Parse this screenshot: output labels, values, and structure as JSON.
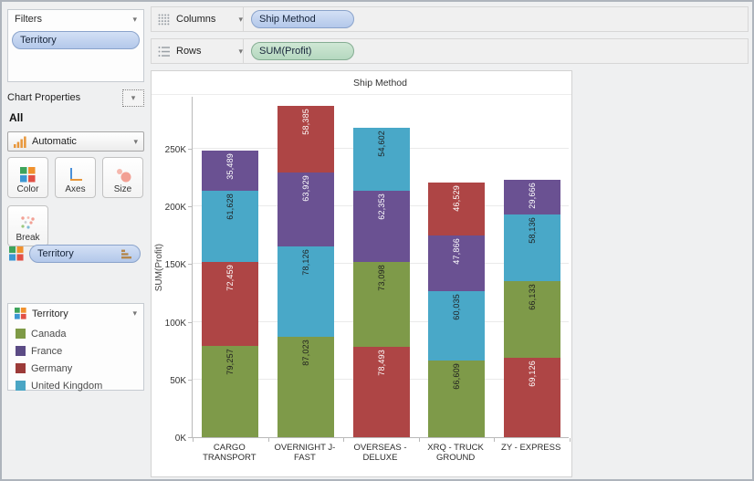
{
  "icons": {
    "chevron_down": "▾",
    "select_chevron": "▾"
  },
  "sidebar": {
    "filters": {
      "title": "Filters",
      "pill": "Territory"
    },
    "chart_properties": {
      "title": "Chart Properties",
      "scope": "All",
      "mark_type": "Automatic",
      "buttons": {
        "color": "Color",
        "axes": "Axes",
        "size": "Size",
        "break": "Break"
      },
      "encoding_pill": "Territory"
    },
    "legend": {
      "title": "Territory",
      "items": [
        {
          "label": "Canada",
          "color": "#7E9A46"
        },
        {
          "label": "France",
          "color": "#5B4B85"
        },
        {
          "label": "Germany",
          "color": "#9C3B39"
        },
        {
          "label": "United Kingdom",
          "color": "#4BA6C5"
        }
      ]
    }
  },
  "shelves": {
    "columns": {
      "label": "Columns",
      "pill": "Ship Method"
    },
    "rows": {
      "label": "Rows",
      "pill": "SUM(Profit)"
    }
  },
  "chart_data": {
    "type": "bar",
    "stacked": true,
    "title": "Ship Method",
    "ylabel": "SUM(Profit)",
    "yticks": [
      {
        "v": 0,
        "label": "0K"
      },
      {
        "v": 50000,
        "label": "50K"
      },
      {
        "v": 100000,
        "label": "100K"
      },
      {
        "v": 150000,
        "label": "150K"
      },
      {
        "v": 200000,
        "label": "200K"
      },
      {
        "v": 250000,
        "label": "250K"
      }
    ],
    "ylim": [
      0,
      295000
    ],
    "grid": true,
    "categories": [
      "CARGO TRANSPORT",
      "OVERNIGHT J-FAST",
      "OVERSEAS - DELUXE",
      "XRQ - TRUCK GROUND",
      "ZY - EXPRESS"
    ],
    "tick_lines": [
      [
        "CARGO",
        "TRANSPORT"
      ],
      [
        "OVERNIGHT J-",
        "FAST"
      ],
      [
        "OVERSEAS -",
        "DELUXE"
      ],
      [
        "XRQ - TRUCK",
        "GROUND"
      ],
      [
        "ZY - EXPRESS"
      ]
    ],
    "series_colors": {
      "Canada": "#7E9A49",
      "France": "#6A5192",
      "Germany": "#AE4545",
      "United Kingdom": "#49A8C8"
    },
    "label_text_colors": {
      "Canada": "#1f1f1f",
      "United Kingdom": "#1f1f1f",
      "France": "#ffffff",
      "Germany": "#ffffff"
    },
    "stacks": [
      {
        "category": "CARGO TRANSPORT",
        "segments": [
          {
            "name": "Canada",
            "value": 79257,
            "label": "79,257"
          },
          {
            "name": "Germany",
            "value": 72459,
            "label": "72,459"
          },
          {
            "name": "United Kingdom",
            "value": 61628,
            "label": "61,628"
          },
          {
            "name": "France",
            "value": 35489,
            "label": "35,489"
          }
        ]
      },
      {
        "category": "OVERNIGHT J-FAST",
        "segments": [
          {
            "name": "Canada",
            "value": 87023,
            "label": "87,023"
          },
          {
            "name": "United Kingdom",
            "value": 78126,
            "label": "78,126"
          },
          {
            "name": "France",
            "value": 63929,
            "label": "63,929"
          },
          {
            "name": "Germany",
            "value": 58385,
            "label": "58,385"
          }
        ]
      },
      {
        "category": "OVERSEAS - DELUXE",
        "segments": [
          {
            "name": "Germany",
            "value": 78493,
            "label": "78,493"
          },
          {
            "name": "Canada",
            "value": 73098,
            "label": "73,098"
          },
          {
            "name": "France",
            "value": 62353,
            "label": "62,353"
          },
          {
            "name": "United Kingdom",
            "value": 54602,
            "label": "54,602"
          }
        ]
      },
      {
        "category": "XRQ - TRUCK GROUND",
        "segments": [
          {
            "name": "Canada",
            "value": 66609,
            "label": "66,609"
          },
          {
            "name": "United Kingdom",
            "value": 60035,
            "label": "60,035"
          },
          {
            "name": "France",
            "value": 47866,
            "label": "47,866"
          },
          {
            "name": "Germany",
            "value": 46529,
            "label": "46,529"
          }
        ]
      },
      {
        "category": "ZY - EXPRESS",
        "segments": [
          {
            "name": "Germany",
            "value": 69126,
            "label": "69,126"
          },
          {
            "name": "Canada",
            "value": 66133,
            "label": "66,133"
          },
          {
            "name": "United Kingdom",
            "value": 58136,
            "label": "58,136"
          },
          {
            "name": "France",
            "value": 29666,
            "label": "29,666"
          }
        ]
      }
    ]
  }
}
